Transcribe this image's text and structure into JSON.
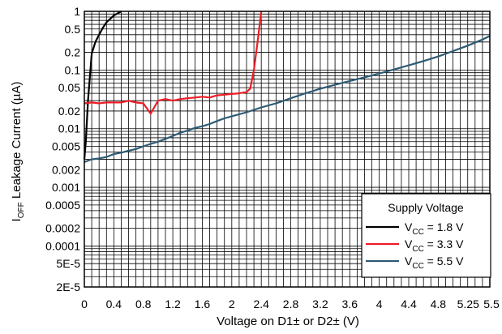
{
  "chart_data": {
    "type": "line",
    "xlabel": "Voltage on D1± or D2± (V)",
    "ylabel": {
      "prefix": "I",
      "subscript": "OFF",
      "text": " Leakage Current (µA)"
    },
    "xlim": [
      0,
      5.5
    ],
    "ylim": [
      2e-05,
      1
    ],
    "y_scale": "log",
    "grid": true,
    "x_ticks": [
      {
        "value": 0,
        "label": "0"
      },
      {
        "value": 0.4,
        "label": "0.4"
      },
      {
        "value": 0.8,
        "label": "0.8"
      },
      {
        "value": 1.2,
        "label": "1.2"
      },
      {
        "value": 1.6,
        "label": "1.6"
      },
      {
        "value": 2.0,
        "label": "2"
      },
      {
        "value": 2.4,
        "label": "2.4"
      },
      {
        "value": 2.8,
        "label": "2.8"
      },
      {
        "value": 3.2,
        "label": "3.2"
      },
      {
        "value": 3.6,
        "label": "3.6"
      },
      {
        "value": 4.0,
        "label": "4"
      },
      {
        "value": 4.4,
        "label": "4.4"
      },
      {
        "value": 4.8,
        "label": "4.8"
      },
      {
        "value": 5.25,
        "label": "5.25"
      },
      {
        "value": 5.5,
        "label": "5.5"
      }
    ],
    "y_ticks": [
      {
        "value": 1,
        "label": "1"
      },
      {
        "value": 0.5,
        "label": "0.5"
      },
      {
        "value": 0.2,
        "label": "0.2"
      },
      {
        "value": 0.1,
        "label": "0.1"
      },
      {
        "value": 0.05,
        "label": "0.05"
      },
      {
        "value": 0.02,
        "label": "0.02"
      },
      {
        "value": 0.01,
        "label": "0.01"
      },
      {
        "value": 0.005,
        "label": "0.005"
      },
      {
        "value": 0.002,
        "label": "0.002"
      },
      {
        "value": 0.001,
        "label": "0.001"
      },
      {
        "value": 0.0005,
        "label": "0.0005"
      },
      {
        "value": 0.0002,
        "label": "0.0002"
      },
      {
        "value": 0.0001,
        "label": "0.0001"
      },
      {
        "value": 5e-05,
        "label": "5E-5"
      },
      {
        "value": 2e-05,
        "label": "2E-5"
      }
    ],
    "legend": {
      "title": "Supply Voltage",
      "placement": "bottom-right"
    },
    "series": [
      {
        "label_main": "V",
        "label_sub": "CC",
        "label_rest": " = 1.8 V",
        "color": "#000000",
        "points": [
          [
            0,
            0.003
          ],
          [
            0.02,
            0.006
          ],
          [
            0.05,
            0.03
          ],
          [
            0.1,
            0.19
          ],
          [
            0.15,
            0.3
          ],
          [
            0.2,
            0.4
          ],
          [
            0.25,
            0.52
          ],
          [
            0.3,
            0.65
          ],
          [
            0.4,
            0.85
          ],
          [
            0.5,
            1.0
          ]
        ]
      },
      {
        "label_main": "V",
        "label_sub": "CC",
        "label_rest": " = 3.3 V",
        "color": "#ee1c25",
        "points": [
          [
            0,
            0.027
          ],
          [
            0.1,
            0.028
          ],
          [
            0.2,
            0.027
          ],
          [
            0.3,
            0.028
          ],
          [
            0.4,
            0.028
          ],
          [
            0.5,
            0.028
          ],
          [
            0.6,
            0.03
          ],
          [
            0.7,
            0.028
          ],
          [
            0.8,
            0.027
          ],
          [
            0.9,
            0.018
          ],
          [
            1.0,
            0.03
          ],
          [
            1.1,
            0.032
          ],
          [
            1.2,
            0.03
          ],
          [
            1.3,
            0.032
          ],
          [
            1.4,
            0.033
          ],
          [
            1.5,
            0.034
          ],
          [
            1.6,
            0.035
          ],
          [
            1.7,
            0.034
          ],
          [
            1.8,
            0.037
          ],
          [
            1.9,
            0.038
          ],
          [
            2.0,
            0.039
          ],
          [
            2.1,
            0.04
          ],
          [
            2.2,
            0.042
          ],
          [
            2.25,
            0.048
          ],
          [
            2.3,
            0.1
          ],
          [
            2.35,
            0.3
          ],
          [
            2.4,
            1.0
          ]
        ]
      },
      {
        "label_main": "V",
        "label_sub": "CC",
        "label_rest": " = 5.5 V",
        "color": "#2e5a73",
        "points": [
          [
            0,
            0.0027
          ],
          [
            0.1,
            0.003
          ],
          [
            0.2,
            0.0031
          ],
          [
            0.3,
            0.0033
          ],
          [
            0.4,
            0.0037
          ],
          [
            0.5,
            0.0039
          ],
          [
            0.6,
            0.0042
          ],
          [
            0.7,
            0.0045
          ],
          [
            0.8,
            0.005
          ],
          [
            0.9,
            0.0055
          ],
          [
            1.0,
            0.006
          ],
          [
            1.1,
            0.0067
          ],
          [
            1.2,
            0.0075
          ],
          [
            1.3,
            0.0085
          ],
          [
            1.4,
            0.0093
          ],
          [
            1.5,
            0.0103
          ],
          [
            1.6,
            0.011
          ],
          [
            1.7,
            0.012
          ],
          [
            1.8,
            0.0135
          ],
          [
            1.9,
            0.015
          ],
          [
            2.0,
            0.0163
          ],
          [
            2.2,
            0.019
          ],
          [
            2.4,
            0.023
          ],
          [
            2.6,
            0.027
          ],
          [
            2.8,
            0.033
          ],
          [
            3.0,
            0.04
          ],
          [
            3.2,
            0.048
          ],
          [
            3.4,
            0.056
          ],
          [
            3.6,
            0.065
          ],
          [
            3.8,
            0.075
          ],
          [
            4.0,
            0.087
          ],
          [
            4.2,
            0.102
          ],
          [
            4.4,
            0.12
          ],
          [
            4.6,
            0.142
          ],
          [
            4.8,
            0.17
          ],
          [
            5.0,
            0.21
          ],
          [
            5.2,
            0.26
          ],
          [
            5.4,
            0.33
          ],
          [
            5.5,
            0.38
          ]
        ]
      }
    ]
  }
}
